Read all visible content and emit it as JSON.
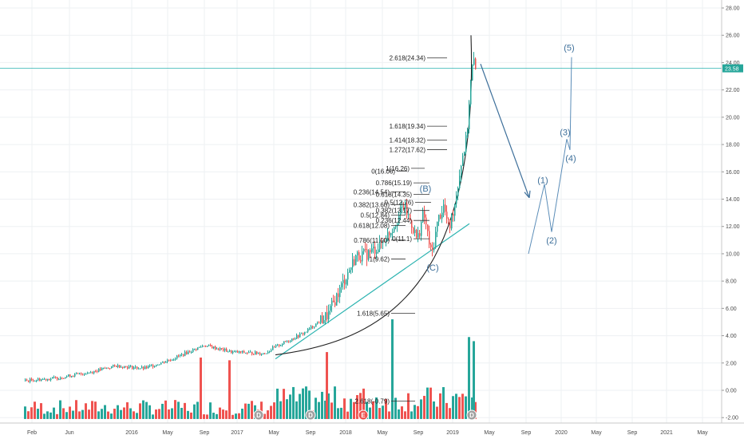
{
  "colors": {
    "up": "#26a69a",
    "down": "#ef5350",
    "trend": "#2bb3b0",
    "wave": "#5b8db8",
    "arc": "#222222",
    "price_label_bg": "#26a69a"
  },
  "chart_data": {
    "type": "candlestick",
    "x_ticks": [
      "Feb",
      "Jun",
      "2016",
      "May",
      "Sep",
      "2017",
      "May",
      "Sep",
      "2018",
      "May",
      "Sep",
      "2019",
      "May",
      "Sep",
      "2020",
      "May",
      "Sep",
      "2021",
      "May"
    ],
    "y_ticks": [
      "28.00",
      "26.00",
      "24.00",
      "22.00",
      "20.00",
      "18.00",
      "16.00",
      "14.00",
      "12.00",
      "10.00",
      "8.00",
      "6.00",
      "4.00",
      "2.00",
      "0.00",
      "-2.00"
    ],
    "ylim": [
      -2.2,
      28.6
    ],
    "last_price": "23.58",
    "last_price_value": 23.58,
    "price_anchors": [
      [
        0,
        0.6
      ],
      [
        30,
        0.7
      ],
      [
        70,
        0.9
      ],
      [
        110,
        1.3
      ],
      [
        145,
        1.8
      ],
      [
        180,
        1.6
      ],
      [
        215,
        2.3
      ],
      [
        255,
        3.3
      ],
      [
        290,
        2.8
      ],
      [
        330,
        2.7
      ],
      [
        345,
        3.2
      ],
      [
        380,
        4.2
      ],
      [
        410,
        5.5
      ],
      [
        430,
        8.0
      ],
      [
        445,
        9.8
      ],
      [
        460,
        10.0
      ],
      [
        475,
        10.6
      ],
      [
        490,
        11.8
      ],
      [
        505,
        13.5
      ],
      [
        515,
        12.2
      ],
      [
        522,
        11.0
      ],
      [
        530,
        13.0
      ],
      [
        540,
        9.8
      ],
      [
        548,
        12.5
      ],
      [
        555,
        13.5
      ],
      [
        562,
        11.8
      ],
      [
        570,
        14.0
      ],
      [
        578,
        17.0
      ],
      [
        584,
        18.5
      ],
      [
        588,
        22.0
      ],
      [
        592,
        24.2
      ],
      [
        596,
        23.2
      ]
    ],
    "volume_bars": [
      {
        "x": 250,
        "value": 2.4,
        "dir": "down"
      },
      {
        "x": 286,
        "value": 2.2,
        "dir": "down"
      },
      {
        "x": 408,
        "value": 2.8,
        "dir": "down"
      },
      {
        "x": 490,
        "value": 5.2,
        "dir": "up"
      },
      {
        "x": 586,
        "value": 3.9,
        "dir": "up"
      },
      {
        "x": 592,
        "value": 3.6,
        "dir": "up"
      }
    ],
    "fib_levels": [
      {
        "label": "2.618(24.34)",
        "price": 24.34
      },
      {
        "label": "1.618(19.34)",
        "price": 19.34
      },
      {
        "label": "1.414(18.32)",
        "price": 18.32
      },
      {
        "label": "1.272(17.62)",
        "price": 17.62
      },
      {
        "label": "1(16.26)",
        "price": 16.26
      },
      {
        "label": "0(16.06)",
        "price": 16.06
      },
      {
        "label": "0.786(15.19)",
        "price": 15.19
      },
      {
        "label": "0.236(14.54)",
        "price": 14.54
      },
      {
        "label": "0.618(14.35)",
        "price": 14.35
      },
      {
        "label": "0.5(13.76)",
        "price": 13.76
      },
      {
        "label": "0.382(13.60)",
        "price": 13.6
      },
      {
        "label": "0.382(13.17)",
        "price": 13.17
      },
      {
        "label": "0.5(12.84)",
        "price": 12.84
      },
      {
        "label": "0.236(12.44)",
        "price": 12.44
      },
      {
        "label": "0.618(12.08)",
        "price": 12.08
      },
      {
        "label": "0(11.1)",
        "price": 11.1
      },
      {
        "label": "0.786(11.00)",
        "price": 11.0
      },
      {
        "label": "1(9.62)",
        "price": 9.62
      },
      {
        "label": "1.618(5.65)",
        "price": 5.65
      },
      {
        "label": "2.618(-0.79)",
        "price": -0.79
      }
    ],
    "wave_labels": [
      "(1)",
      "(2)",
      "(3)",
      "(4)",
      "(5)",
      "(B)",
      "(C)"
    ],
    "event_markers": [
      "D",
      "D",
      "E",
      "D"
    ]
  }
}
